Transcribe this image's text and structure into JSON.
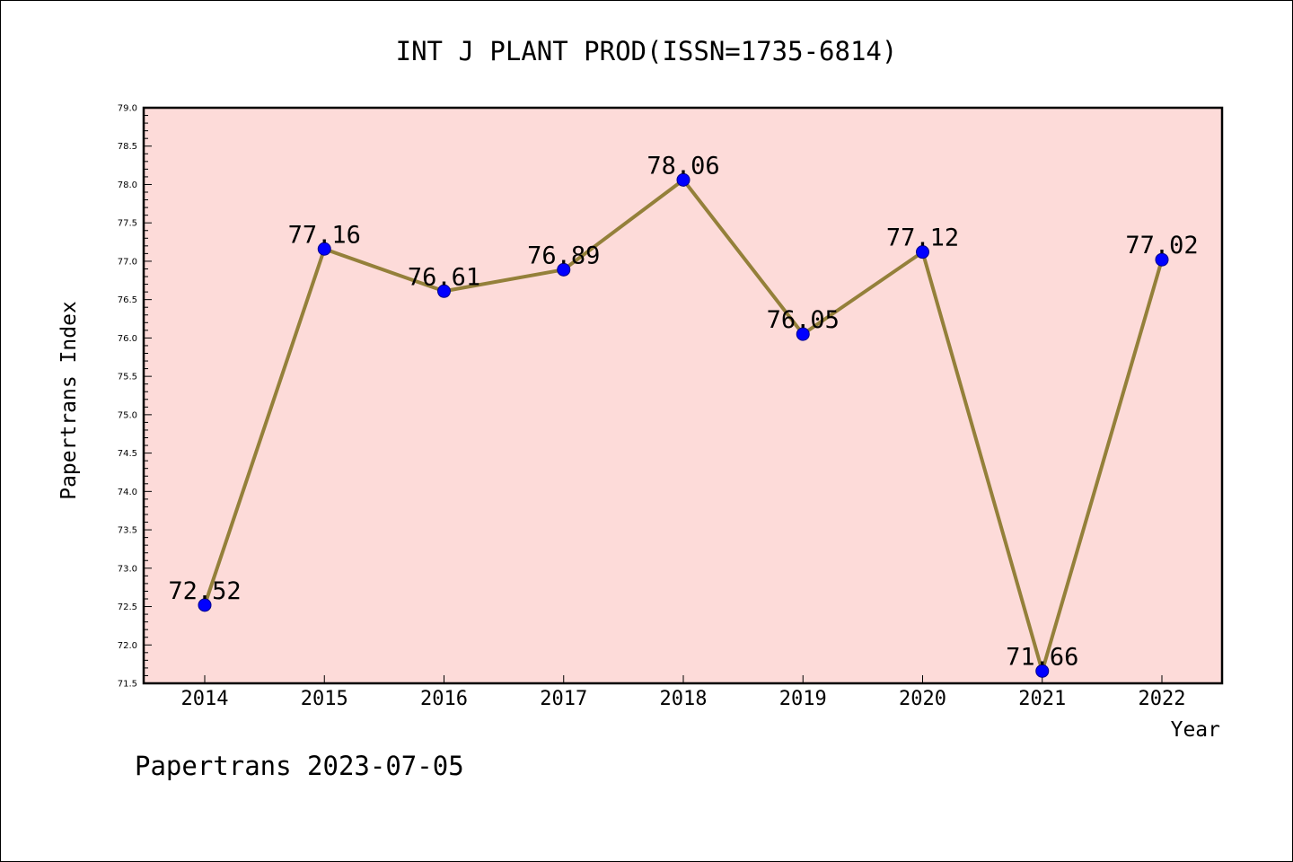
{
  "chart_data": {
    "type": "line",
    "title": "INT J PLANT PROD(ISSN=1735-6814)",
    "xlabel": "Year",
    "ylabel": "Papertrans Index",
    "categories": [
      "2014",
      "2015",
      "2016",
      "2017",
      "2018",
      "2019",
      "2020",
      "2021",
      "2022"
    ],
    "series": [
      {
        "values": [
          72.52,
          77.16,
          76.61,
          76.89,
          78.06,
          76.05,
          77.12,
          71.66,
          77.02
        ]
      }
    ],
    "data_labels": [
      "72.52",
      "77.16",
      "76.61",
      "76.89",
      "78.06",
      "76.05",
      "77.12",
      "71.66",
      "77.02"
    ],
    "ylim": [
      71.5,
      79.0
    ],
    "yticks": [
      "71.5",
      "72.0",
      "72.5",
      "73.0",
      "73.5",
      "74.0",
      "74.5",
      "75.0",
      "75.5",
      "76.0",
      "76.5",
      "77.0",
      "77.5",
      "78.0",
      "78.5",
      "79.0"
    ],
    "grid": false,
    "footer": "Papertrans 2023-07-05",
    "colors": {
      "plot_background": "#fddbd9",
      "line": "#94803a",
      "marker_fill": "#0000ff",
      "marker_edge": "#00008b",
      "axes": "#000000"
    }
  }
}
